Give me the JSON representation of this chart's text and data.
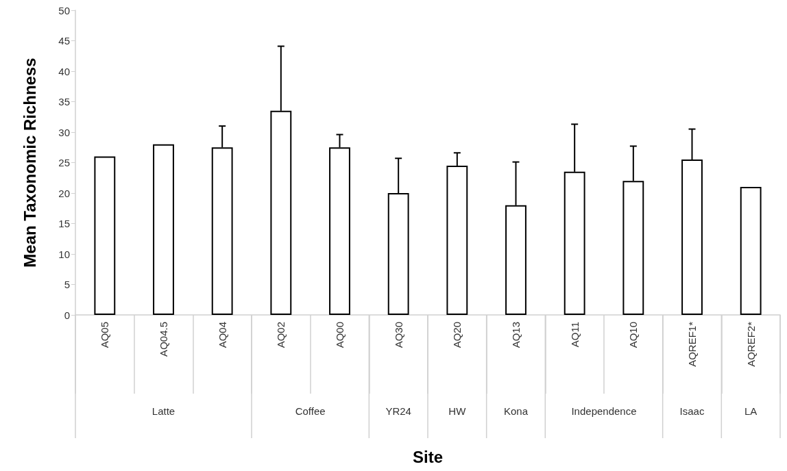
{
  "chart_data": {
    "type": "bar",
    "xlabel": "Site",
    "ylabel": "Mean Taxonomic Richness",
    "categories": [
      "AQ05",
      "AQ04.5",
      "AQ04",
      "AQ02",
      "AQ00",
      "AQ30",
      "AQ20",
      "AQ13",
      "AQ11",
      "AQ10",
      "AQREF1*",
      "AQREF2*"
    ],
    "values": [
      26,
      28,
      27.5,
      33.5,
      27.5,
      20,
      24.5,
      18,
      23.5,
      22,
      25.5,
      21
    ],
    "errors": [
      null,
      null,
      [
        27.5,
        31
      ],
      [
        33.5,
        44.1
      ],
      [
        27.5,
        29.6
      ],
      [
        20,
        25.7
      ],
      [
        24.5,
        26.6
      ],
      [
        18,
        25.1
      ],
      [
        23.5,
        31.3
      ],
      [
        22,
        27.7
      ],
      [
        25.5,
        30.5
      ],
      null
    ],
    "color": "#ffffff",
    "ylim": [
      0,
      50
    ],
    "yticks": [
      0,
      5,
      10,
      15,
      20,
      25,
      30,
      35,
      40,
      45,
      50
    ],
    "grid": false,
    "annotations": [
      "Latte",
      "Coffee",
      "YR24",
      "HW",
      "Kona",
      "Independence",
      "Isaac",
      "LA"
    ]
  }
}
